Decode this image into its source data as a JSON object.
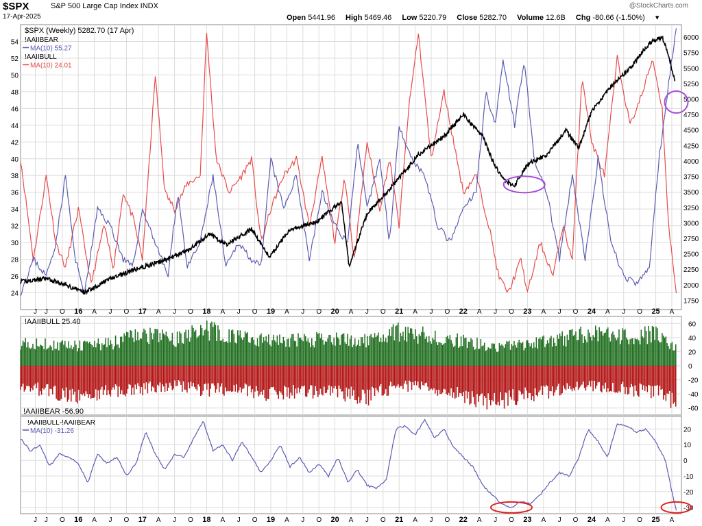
{
  "header": {
    "symbol": "$SPX",
    "name": "S&P 500 Large Cap Index INDX",
    "date": "17-Apr-2025",
    "credit": "@StockCharts.com",
    "open_label": "Open",
    "open": "5441.96",
    "high_label": "High",
    "high": "5469.46",
    "low_label": "Low",
    "low": "5220.79",
    "close_label": "Close",
    "close": "5282.70",
    "volume_label": "Volume",
    "volume": "12.6B",
    "chg_label": "Chg",
    "chg": "-80.66 (-1.50%)"
  },
  "colors": {
    "spx": "#000000",
    "bear": "#5b5bb5",
    "bull": "#e84a4a",
    "bar_green": "#1f6e1f",
    "bar_red": "#b31414",
    "diff": "#5b5bb5",
    "circle_purple": "#a64dd9",
    "circle_red": "#e02020",
    "grid": "#dcdcdc"
  },
  "x_axis": {
    "labels": [
      {
        "t": 2015.33,
        "label": "J"
      },
      {
        "t": 2015.5,
        "label": "J"
      },
      {
        "t": 2015.75,
        "label": "O"
      },
      {
        "t": 2016.0,
        "label": "16"
      },
      {
        "t": 2016.25,
        "label": "A"
      },
      {
        "t": 2016.5,
        "label": "J"
      },
      {
        "t": 2016.75,
        "label": "O"
      },
      {
        "t": 2017.0,
        "label": "17"
      },
      {
        "t": 2017.25,
        "label": "A"
      },
      {
        "t": 2017.5,
        "label": "J"
      },
      {
        "t": 2017.75,
        "label": "O"
      },
      {
        "t": 2018.0,
        "label": "18"
      },
      {
        "t": 2018.25,
        "label": "A"
      },
      {
        "t": 2018.5,
        "label": "J"
      },
      {
        "t": 2018.75,
        "label": "O"
      },
      {
        "t": 2019.0,
        "label": "19"
      },
      {
        "t": 2019.25,
        "label": "A"
      },
      {
        "t": 2019.5,
        "label": "J"
      },
      {
        "t": 2019.75,
        "label": "O"
      },
      {
        "t": 2020.0,
        "label": "20"
      },
      {
        "t": 2020.25,
        "label": "A"
      },
      {
        "t": 2020.5,
        "label": "J"
      },
      {
        "t": 2020.75,
        "label": "O"
      },
      {
        "t": 2021.0,
        "label": "21"
      },
      {
        "t": 2021.25,
        "label": "A"
      },
      {
        "t": 2021.5,
        "label": "J"
      },
      {
        "t": 2021.75,
        "label": "O"
      },
      {
        "t": 2022.0,
        "label": "22"
      },
      {
        "t": 2022.25,
        "label": "A"
      },
      {
        "t": 2022.5,
        "label": "J"
      },
      {
        "t": 2022.75,
        "label": "O"
      },
      {
        "t": 2023.0,
        "label": "23"
      },
      {
        "t": 2023.25,
        "label": "A"
      },
      {
        "t": 2023.5,
        "label": "J"
      },
      {
        "t": 2023.75,
        "label": "O"
      },
      {
        "t": 2024.0,
        "label": "24"
      },
      {
        "t": 2024.25,
        "label": "A"
      },
      {
        "t": 2024.5,
        "label": "J"
      },
      {
        "t": 2024.75,
        "label": "O"
      },
      {
        "t": 2025.0,
        "label": "25"
      },
      {
        "t": 2025.25,
        "label": "A"
      }
    ]
  },
  "chart_data": [
    {
      "type": "line",
      "title": "$SPX (Weekly) 5282.70 (17 Apr)",
      "xlim": [
        2015.1,
        2025.4
      ],
      "y_left_lim": [
        22,
        56
      ],
      "y_left_ticks": [
        24,
        26,
        28,
        30,
        32,
        34,
        36,
        38,
        40,
        42,
        44,
        46,
        48,
        50,
        52,
        54
      ],
      "y_right_lim": [
        1600,
        6200
      ],
      "y_right_ticks": [
        1750,
        2000,
        2250,
        2500,
        2750,
        3000,
        3250,
        3500,
        3750,
        4000,
        4250,
        4500,
        4750,
        5000,
        5250,
        5500,
        5750,
        6000
      ],
      "legend": [
        {
          "label": "!AAIIBEAR",
          "color": "#000000"
        },
        {
          "label": "MA(10) 55.27",
          "color": "#5b5bb5"
        },
        {
          "label": "!AAIIBULL",
          "color": "#000000"
        },
        {
          "label": "MA(10) 24.01",
          "color": "#e84a4a"
        }
      ],
      "series": [
        {
          "name": "$SPX (Weekly)",
          "axis": "right",
          "x": [
            2015.1,
            2015.5,
            2015.8,
            2016.1,
            2016.5,
            2016.9,
            2017.3,
            2017.7,
            2018.05,
            2018.3,
            2018.7,
            2018.98,
            2019.3,
            2019.7,
            2020.1,
            2020.22,
            2020.5,
            2020.9,
            2021.3,
            2021.7,
            2022.0,
            2022.3,
            2022.5,
            2022.7,
            2022.8,
            2023.0,
            2023.3,
            2023.6,
            2023.8,
            2024.0,
            2024.3,
            2024.6,
            2024.9,
            2025.1,
            2025.2,
            2025.3
          ],
          "y": [
            2050,
            2100,
            2000,
            1880,
            2100,
            2250,
            2380,
            2550,
            2820,
            2650,
            2900,
            2450,
            2900,
            3000,
            3350,
            2300,
            3150,
            3600,
            4100,
            4400,
            4750,
            4400,
            3900,
            3650,
            3600,
            3950,
            4100,
            4500,
            4200,
            4800,
            5200,
            5500,
            5900,
            6000,
            5700,
            5280
          ]
        },
        {
          "name": "!AAIIBEAR MA(10)",
          "axis": "left",
          "x": [
            2015.1,
            2015.3,
            2015.5,
            2015.65,
            2015.8,
            2015.95,
            2016.1,
            2016.3,
            2016.5,
            2016.7,
            2016.85,
            2017.0,
            2017.2,
            2017.4,
            2017.55,
            2017.7,
            2017.9,
            2018.1,
            2018.3,
            2018.5,
            2018.7,
            2018.85,
            2019.0,
            2019.2,
            2019.4,
            2019.6,
            2019.8,
            2020.0,
            2020.2,
            2020.35,
            2020.5,
            2020.7,
            2020.85,
            2021.0,
            2021.2,
            2021.4,
            2021.6,
            2021.8,
            2022.0,
            2022.2,
            2022.35,
            2022.5,
            2022.62,
            2022.8,
            2022.95,
            2023.1,
            2023.3,
            2023.5,
            2023.7,
            2023.9,
            2024.1,
            2024.3,
            2024.5,
            2024.7,
            2024.9,
            2025.05,
            2025.15,
            2025.25,
            2025.32
          ],
          "y": [
            24,
            28,
            26,
            30,
            38,
            28,
            24,
            34,
            32,
            28,
            27,
            34,
            30,
            26,
            36,
            27,
            30,
            38,
            27,
            30,
            28,
            27,
            40,
            34,
            38,
            28,
            36,
            32,
            30,
            42,
            34,
            40,
            30,
            44,
            40,
            38,
            32,
            30,
            34,
            36,
            48,
            44,
            52,
            44,
            52,
            40,
            36,
            28,
            38,
            28,
            40,
            30,
            26,
            25,
            27,
            40,
            46,
            52,
            55.3
          ]
        },
        {
          "name": "!AAIIBULL MA(10)",
          "axis": "left",
          "x": [
            2015.1,
            2015.3,
            2015.5,
            2015.65,
            2015.8,
            2016.0,
            2016.2,
            2016.4,
            2016.55,
            2016.7,
            2016.85,
            2017.0,
            2017.2,
            2017.35,
            2017.5,
            2017.7,
            2017.9,
            2018.0,
            2018.15,
            2018.35,
            2018.55,
            2018.7,
            2018.85,
            2019.0,
            2019.2,
            2019.4,
            2019.6,
            2019.8,
            2020.0,
            2020.15,
            2020.3,
            2020.5,
            2020.7,
            2020.85,
            2021.0,
            2021.15,
            2021.3,
            2021.5,
            2021.7,
            2021.85,
            2022.0,
            2022.2,
            2022.4,
            2022.55,
            2022.7,
            2022.9,
            2023.0,
            2023.2,
            2023.4,
            2023.55,
            2023.7,
            2023.85,
            2024.0,
            2024.2,
            2024.4,
            2024.6,
            2024.8,
            2024.95,
            2025.1,
            2025.2,
            2025.32
          ],
          "y": [
            40,
            28,
            38,
            30,
            27,
            34,
            25,
            32,
            27,
            36,
            33,
            28,
            50,
            36,
            34,
            37,
            38,
            55,
            40,
            36,
            38,
            40,
            30,
            34,
            38,
            40,
            32,
            40,
            30,
            38,
            28,
            42,
            34,
            40,
            32,
            46,
            55,
            40,
            48,
            42,
            36,
            38,
            32,
            26,
            24,
            28,
            24,
            30,
            26,
            32,
            28,
            50,
            42,
            38,
            52,
            44,
            48,
            52,
            46,
            32,
            24
          ]
        }
      ]
    },
    {
      "type": "bar",
      "title": "!AAIIBULL 25.40",
      "bottom_label": "!AAIIBEAR -56.90",
      "xlim": [
        2015.1,
        2025.4
      ],
      "ylim": [
        -70,
        70
      ],
      "y_ticks": [
        -60,
        -40,
        -20,
        0,
        20,
        40,
        60
      ],
      "series": [
        {
          "name": "!AAIIBULL",
          "x": [
            2015.1,
            2015.6,
            2016.0,
            2016.5,
            2017.0,
            2017.5,
            2018.0,
            2018.5,
            2019.0,
            2019.5,
            2020.0,
            2020.5,
            2021.0,
            2021.5,
            2022.0,
            2022.5,
            2023.0,
            2023.5,
            2024.0,
            2024.5,
            2025.0,
            2025.32
          ],
          "y": [
            35,
            32,
            30,
            34,
            48,
            40,
            55,
            42,
            38,
            40,
            40,
            38,
            52,
            45,
            38,
            28,
            32,
            40,
            50,
            45,
            48,
            25
          ]
        },
        {
          "name": "!AAIIBEAR",
          "x": [
            2015.1,
            2015.6,
            2016.0,
            2016.5,
            2017.0,
            2017.5,
            2018.0,
            2018.5,
            2019.0,
            2019.5,
            2020.0,
            2020.5,
            2021.0,
            2021.5,
            2022.0,
            2022.5,
            2023.0,
            2023.5,
            2024.0,
            2024.5,
            2025.0,
            2025.32
          ],
          "y": [
            -32,
            -40,
            -50,
            -40,
            -35,
            -30,
            -38,
            -36,
            -44,
            -40,
            -42,
            -48,
            -30,
            -34,
            -46,
            -56,
            -44,
            -38,
            -30,
            -35,
            -40,
            -57
          ]
        }
      ]
    },
    {
      "type": "line",
      "title": "!AAIIBULL-!AAIIBEAR",
      "legend": [
        {
          "label": "MA(10) -31.26",
          "color": "#5b5bb5"
        }
      ],
      "xlim": [
        2015.1,
        2025.4
      ],
      "ylim": [
        -34,
        28
      ],
      "y_ticks": [
        -30,
        -20,
        -10,
        0,
        10,
        20
      ],
      "series": [
        {
          "name": "MA(10)",
          "x": [
            2015.1,
            2015.25,
            2015.4,
            2015.55,
            2015.7,
            2015.85,
            2016.0,
            2016.15,
            2016.3,
            2016.45,
            2016.6,
            2016.75,
            2016.9,
            2017.05,
            2017.2,
            2017.35,
            2017.5,
            2017.65,
            2017.8,
            2017.95,
            2018.1,
            2018.25,
            2018.4,
            2018.55,
            2018.7,
            2018.85,
            2019.0,
            2019.15,
            2019.3,
            2019.45,
            2019.6,
            2019.75,
            2019.9,
            2020.05,
            2020.2,
            2020.35,
            2020.5,
            2020.65,
            2020.8,
            2020.95,
            2021.1,
            2021.25,
            2021.4,
            2021.55,
            2021.7,
            2021.85,
            2022.0,
            2022.15,
            2022.3,
            2022.45,
            2022.6,
            2022.75,
            2022.9,
            2023.05,
            2023.2,
            2023.35,
            2023.5,
            2023.65,
            2023.8,
            2023.95,
            2024.1,
            2024.25,
            2024.4,
            2024.55,
            2024.7,
            2024.85,
            2025.0,
            2025.15,
            2025.25,
            2025.32
          ],
          "y": [
            14,
            6,
            10,
            -4,
            4,
            2,
            -2,
            -14,
            4,
            -2,
            2,
            -10,
            -2,
            18,
            4,
            -6,
            4,
            2,
            14,
            25,
            6,
            10,
            0,
            12,
            2,
            -8,
            0,
            10,
            -4,
            2,
            -8,
            -2,
            -10,
            2,
            -14,
            -6,
            -16,
            -18,
            -12,
            20,
            22,
            16,
            26,
            14,
            20,
            8,
            2,
            -4,
            -16,
            -22,
            -28,
            -30,
            -26,
            -28,
            -22,
            -14,
            -8,
            -10,
            2,
            20,
            12,
            2,
            23,
            22,
            18,
            20,
            12,
            0,
            -20,
            -31.3
          ]
        }
      ]
    }
  ],
  "annotations": [
    {
      "kind": "ellipse",
      "panel": 0,
      "t": 2022.95,
      "v": 3620,
      "axis": "right",
      "color": "#a64dd9"
    },
    {
      "kind": "ellipse",
      "panel": 0,
      "t": 2025.32,
      "v": 4950,
      "axis": "right",
      "color": "#a64dd9"
    },
    {
      "kind": "ellipse",
      "panel": 2,
      "t": 2022.75,
      "v": -30,
      "color": "#e02020"
    },
    {
      "kind": "ellipse",
      "panel": 2,
      "t": 2025.32,
      "v": -30,
      "color": "#e02020"
    }
  ]
}
